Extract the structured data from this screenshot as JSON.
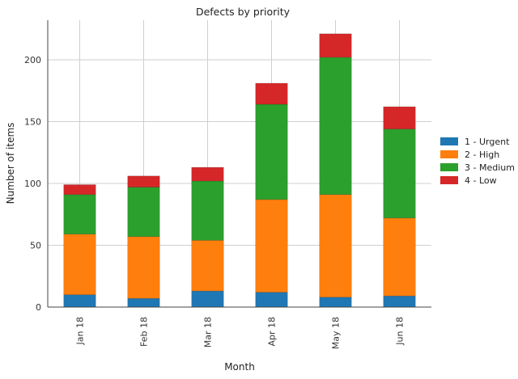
{
  "chart_data": {
    "type": "bar",
    "stacked": true,
    "title": "Defects by priority",
    "xlabel": "Month",
    "ylabel": "Number of items",
    "categories": [
      "Jan 18",
      "Feb 18",
      "Mar 18",
      "Apr 18",
      "May 18",
      "Jun 18"
    ],
    "ylim": [
      0,
      232
    ],
    "yticks": [
      0,
      50,
      100,
      150,
      200
    ],
    "grid": true,
    "legend_position": "right",
    "series": [
      {
        "name": "1 - Urgent",
        "color": "#1f77b4",
        "values": [
          10,
          7,
          13,
          12,
          8,
          9
        ]
      },
      {
        "name": "2 - High",
        "color": "#ff7f0e",
        "values": [
          49,
          50,
          41,
          75,
          83,
          63
        ]
      },
      {
        "name": "3 - Medium",
        "color": "#2ca02c",
        "values": [
          32,
          40,
          48,
          77,
          111,
          72
        ]
      },
      {
        "name": "4 - Low",
        "color": "#d62728",
        "values": [
          8,
          9,
          11,
          17,
          19,
          18
        ]
      }
    ]
  }
}
